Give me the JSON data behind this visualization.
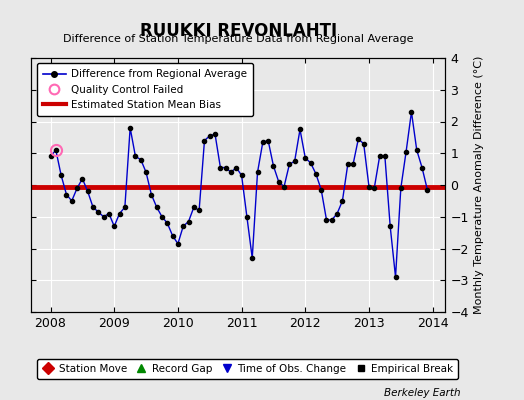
{
  "title": "RUUKKI REVONLAHTI",
  "subtitle": "Difference of Station Temperature Data from Regional Average",
  "ylabel_right": "Monthly Temperature Anomaly Difference (°C)",
  "xlim": [
    2007.7,
    2014.2
  ],
  "ylim": [
    -4,
    4
  ],
  "yticks": [
    -4,
    -3,
    -2,
    -1,
    0,
    1,
    2,
    3,
    4
  ],
  "xticks": [
    2008,
    2009,
    2010,
    2011,
    2012,
    2013,
    2014
  ],
  "bias_value": -0.05,
  "background_color": "#e8e8e8",
  "line_color": "#0000cc",
  "bias_color": "#cc0000",
  "qc_fail_x": 2008.083,
  "qc_fail_y": 1.1,
  "watermark": "Berkeley Earth",
  "data_x": [
    2008.0,
    2008.083,
    2008.167,
    2008.25,
    2008.333,
    2008.417,
    2008.5,
    2008.583,
    2008.667,
    2008.75,
    2008.833,
    2008.917,
    2009.0,
    2009.083,
    2009.167,
    2009.25,
    2009.333,
    2009.417,
    2009.5,
    2009.583,
    2009.667,
    2009.75,
    2009.833,
    2009.917,
    2010.0,
    2010.083,
    2010.167,
    2010.25,
    2010.333,
    2010.417,
    2010.5,
    2010.583,
    2010.667,
    2010.75,
    2010.833,
    2010.917,
    2011.0,
    2011.083,
    2011.167,
    2011.25,
    2011.333,
    2011.417,
    2011.5,
    2011.583,
    2011.667,
    2011.75,
    2011.833,
    2011.917,
    2012.0,
    2012.083,
    2012.167,
    2012.25,
    2012.333,
    2012.417,
    2012.5,
    2012.583,
    2012.667,
    2012.75,
    2012.833,
    2012.917,
    2013.0,
    2013.083,
    2013.167,
    2013.25,
    2013.333,
    2013.417,
    2013.5,
    2013.583,
    2013.667,
    2013.75,
    2013.833,
    2013.917
  ],
  "data_y": [
    0.9,
    1.1,
    0.3,
    -0.3,
    -0.5,
    -0.1,
    0.2,
    -0.2,
    -0.7,
    -0.85,
    -1.0,
    -0.9,
    -1.3,
    -0.9,
    -0.7,
    1.8,
    0.9,
    0.8,
    0.4,
    -0.3,
    -0.7,
    -1.0,
    -1.2,
    -1.6,
    -1.85,
    -1.3,
    -1.15,
    -0.7,
    -0.8,
    1.4,
    1.55,
    1.6,
    0.55,
    0.55,
    0.4,
    0.55,
    0.3,
    -1.0,
    -2.3,
    0.4,
    1.35,
    1.4,
    0.6,
    0.1,
    -0.05,
    0.65,
    0.75,
    1.75,
    0.85,
    0.7,
    0.35,
    -0.15,
    -1.1,
    -1.1,
    -0.9,
    -0.5,
    0.65,
    0.65,
    1.45,
    1.3,
    -0.05,
    -0.1,
    0.9,
    0.9,
    -1.3,
    -2.9,
    -0.1,
    1.05,
    2.3,
    1.1,
    0.55,
    -0.15
  ]
}
